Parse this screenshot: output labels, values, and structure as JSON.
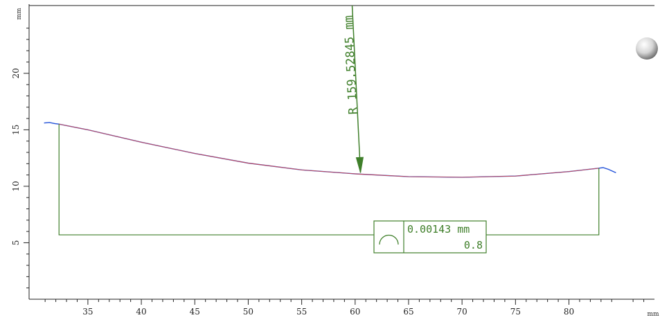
{
  "chart_data": {
    "type": "line",
    "xlabel": "mm",
    "ylabel": "mm",
    "xlim": [
      29.5,
      88
    ],
    "ylim": [
      0,
      26
    ],
    "x_ticks": [
      35,
      40,
      45,
      50,
      55,
      60,
      65,
      70,
      75,
      80
    ],
    "x_tick_labels": [
      "35",
      "40",
      "45",
      "50",
      "55",
      "60",
      "65",
      "70",
      "75",
      "80"
    ],
    "y_ticks": [
      5,
      10,
      15,
      20
    ],
    "y_tick_labels": [
      "5",
      "10",
      "15",
      "20"
    ],
    "series": [
      {
        "color": "#1f4fd8",
        "x": [
          30.9,
          31.4,
          31.9,
          32.3,
          35,
          40,
          45,
          50,
          55,
          60,
          65,
          70,
          75,
          80,
          82.8,
          83.2,
          83.7,
          84.4
        ],
        "y": [
          15.6,
          15.65,
          15.55,
          15.5,
          15.0,
          13.9,
          12.9,
          12.05,
          11.45,
          11.1,
          10.85,
          10.8,
          10.9,
          11.3,
          11.6,
          11.65,
          11.5,
          11.2
        ]
      },
      {
        "color": "#d84a4a",
        "x": [
          32.3,
          35,
          40,
          45,
          50,
          55,
          60,
          65,
          70,
          75,
          80,
          82.8
        ],
        "y": [
          15.5,
          15.0,
          13.9,
          12.9,
          12.05,
          11.45,
          11.1,
          10.85,
          10.8,
          10.9,
          11.3,
          11.6
        ]
      }
    ],
    "annotations": {
      "color": "#3f7f2a",
      "radius_label": "R 159.52845 mm",
      "radius_arrow_tip": [
        60.5,
        11.2
      ],
      "bracket_ends_x": [
        32.3,
        82.8
      ],
      "bracket_base_y": 5.7,
      "tolerance_box": {
        "symbol": "profile-of-a-line",
        "value": "0.00143 mm",
        "filter": "0.8"
      }
    }
  }
}
